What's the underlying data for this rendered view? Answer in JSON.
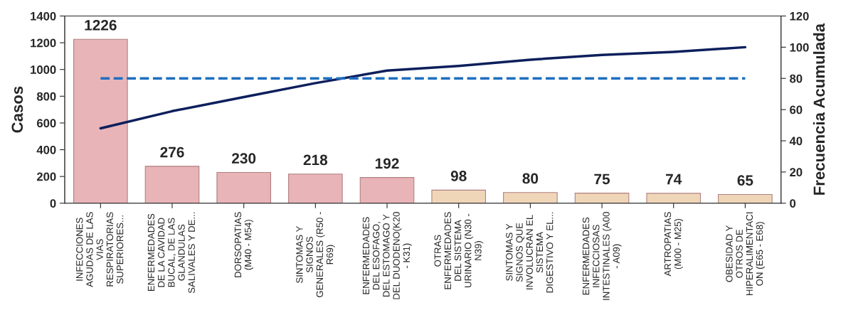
{
  "chart_data": {
    "type": "bar",
    "categories": [
      "INFECCIONES\nAGUDAS DE LAS\nVIAS\nRESPIRATORIAS\nSUPERIORES...",
      "ENFERMEDADES\nDE LA CAVIDAD\nBUCAL, DE LAS\nGLANDULAS\nSALIVALES Y DE...",
      "DORSOPATIAS\n(M40 - M54)",
      "SINTOMAS Y\nSIGNOS\nGENERALES (R50 -\nR69)",
      "ENFERMEDADES\nDEL ESOFAGO,\nDEL ESTOMAGO Y\nDEL DUODENO(K20\n- K31)",
      "OTRAS\nENFERMEDADES\nDEL SISTEMA\nURINARIO (N30 -\nN39)",
      "SINTOMAS Y\nSIGNOS QUE\nINVOLUCRAN EL\nSISTEMA\nDIGESTIVO Y EL...",
      "ENFERMEDADES\nINFECCIOSAS\nINTESTINALES (A00\n- A09)",
      "ARTROPATIAS\n(M00 - M25)",
      "OBESIDAD Y\nOTROS DE\nHIPERALIMENTACI\nON (E65 - E68)"
    ],
    "series": [
      {
        "values": [
          1226,
          276,
          230,
          218,
          192,
          98,
          80,
          75,
          74,
          65
        ],
        "value_labels": [
          "1226",
          "276",
          "230",
          "218",
          "192",
          "98",
          "80",
          "75",
          "74",
          "65"
        ],
        "colors": [
          "#e8b4b8",
          "#e8b4b8",
          "#e8b4b8",
          "#e8b4b8",
          "#e8b4b8",
          "#f0d6b8",
          "#f0d6b8",
          "#f0d6b8",
          "#f0d6b8",
          "#f0d6b8"
        ]
      },
      {
        "type": "line",
        "axis": "y2",
        "color": "#0d1f5c",
        "values": [
          48,
          59,
          68,
          77,
          85,
          88,
          92,
          95,
          97,
          100
        ]
      }
    ],
    "ylabel": "Casos",
    "y2label": "Frecuencia Acumulada",
    "ylim": [
      0,
      1400
    ],
    "yticks": [
      0,
      200,
      400,
      600,
      800,
      1000,
      1200,
      1400
    ],
    "y2lim": [
      0,
      120
    ],
    "y2ticks": [
      0,
      20,
      40,
      60,
      80,
      100,
      120
    ],
    "ref_lines": [
      {
        "axis": "y2",
        "value": 80,
        "color": "#1f6fc0",
        "line_style": "dashed"
      }
    ],
    "grid": false,
    "legend": false
  }
}
